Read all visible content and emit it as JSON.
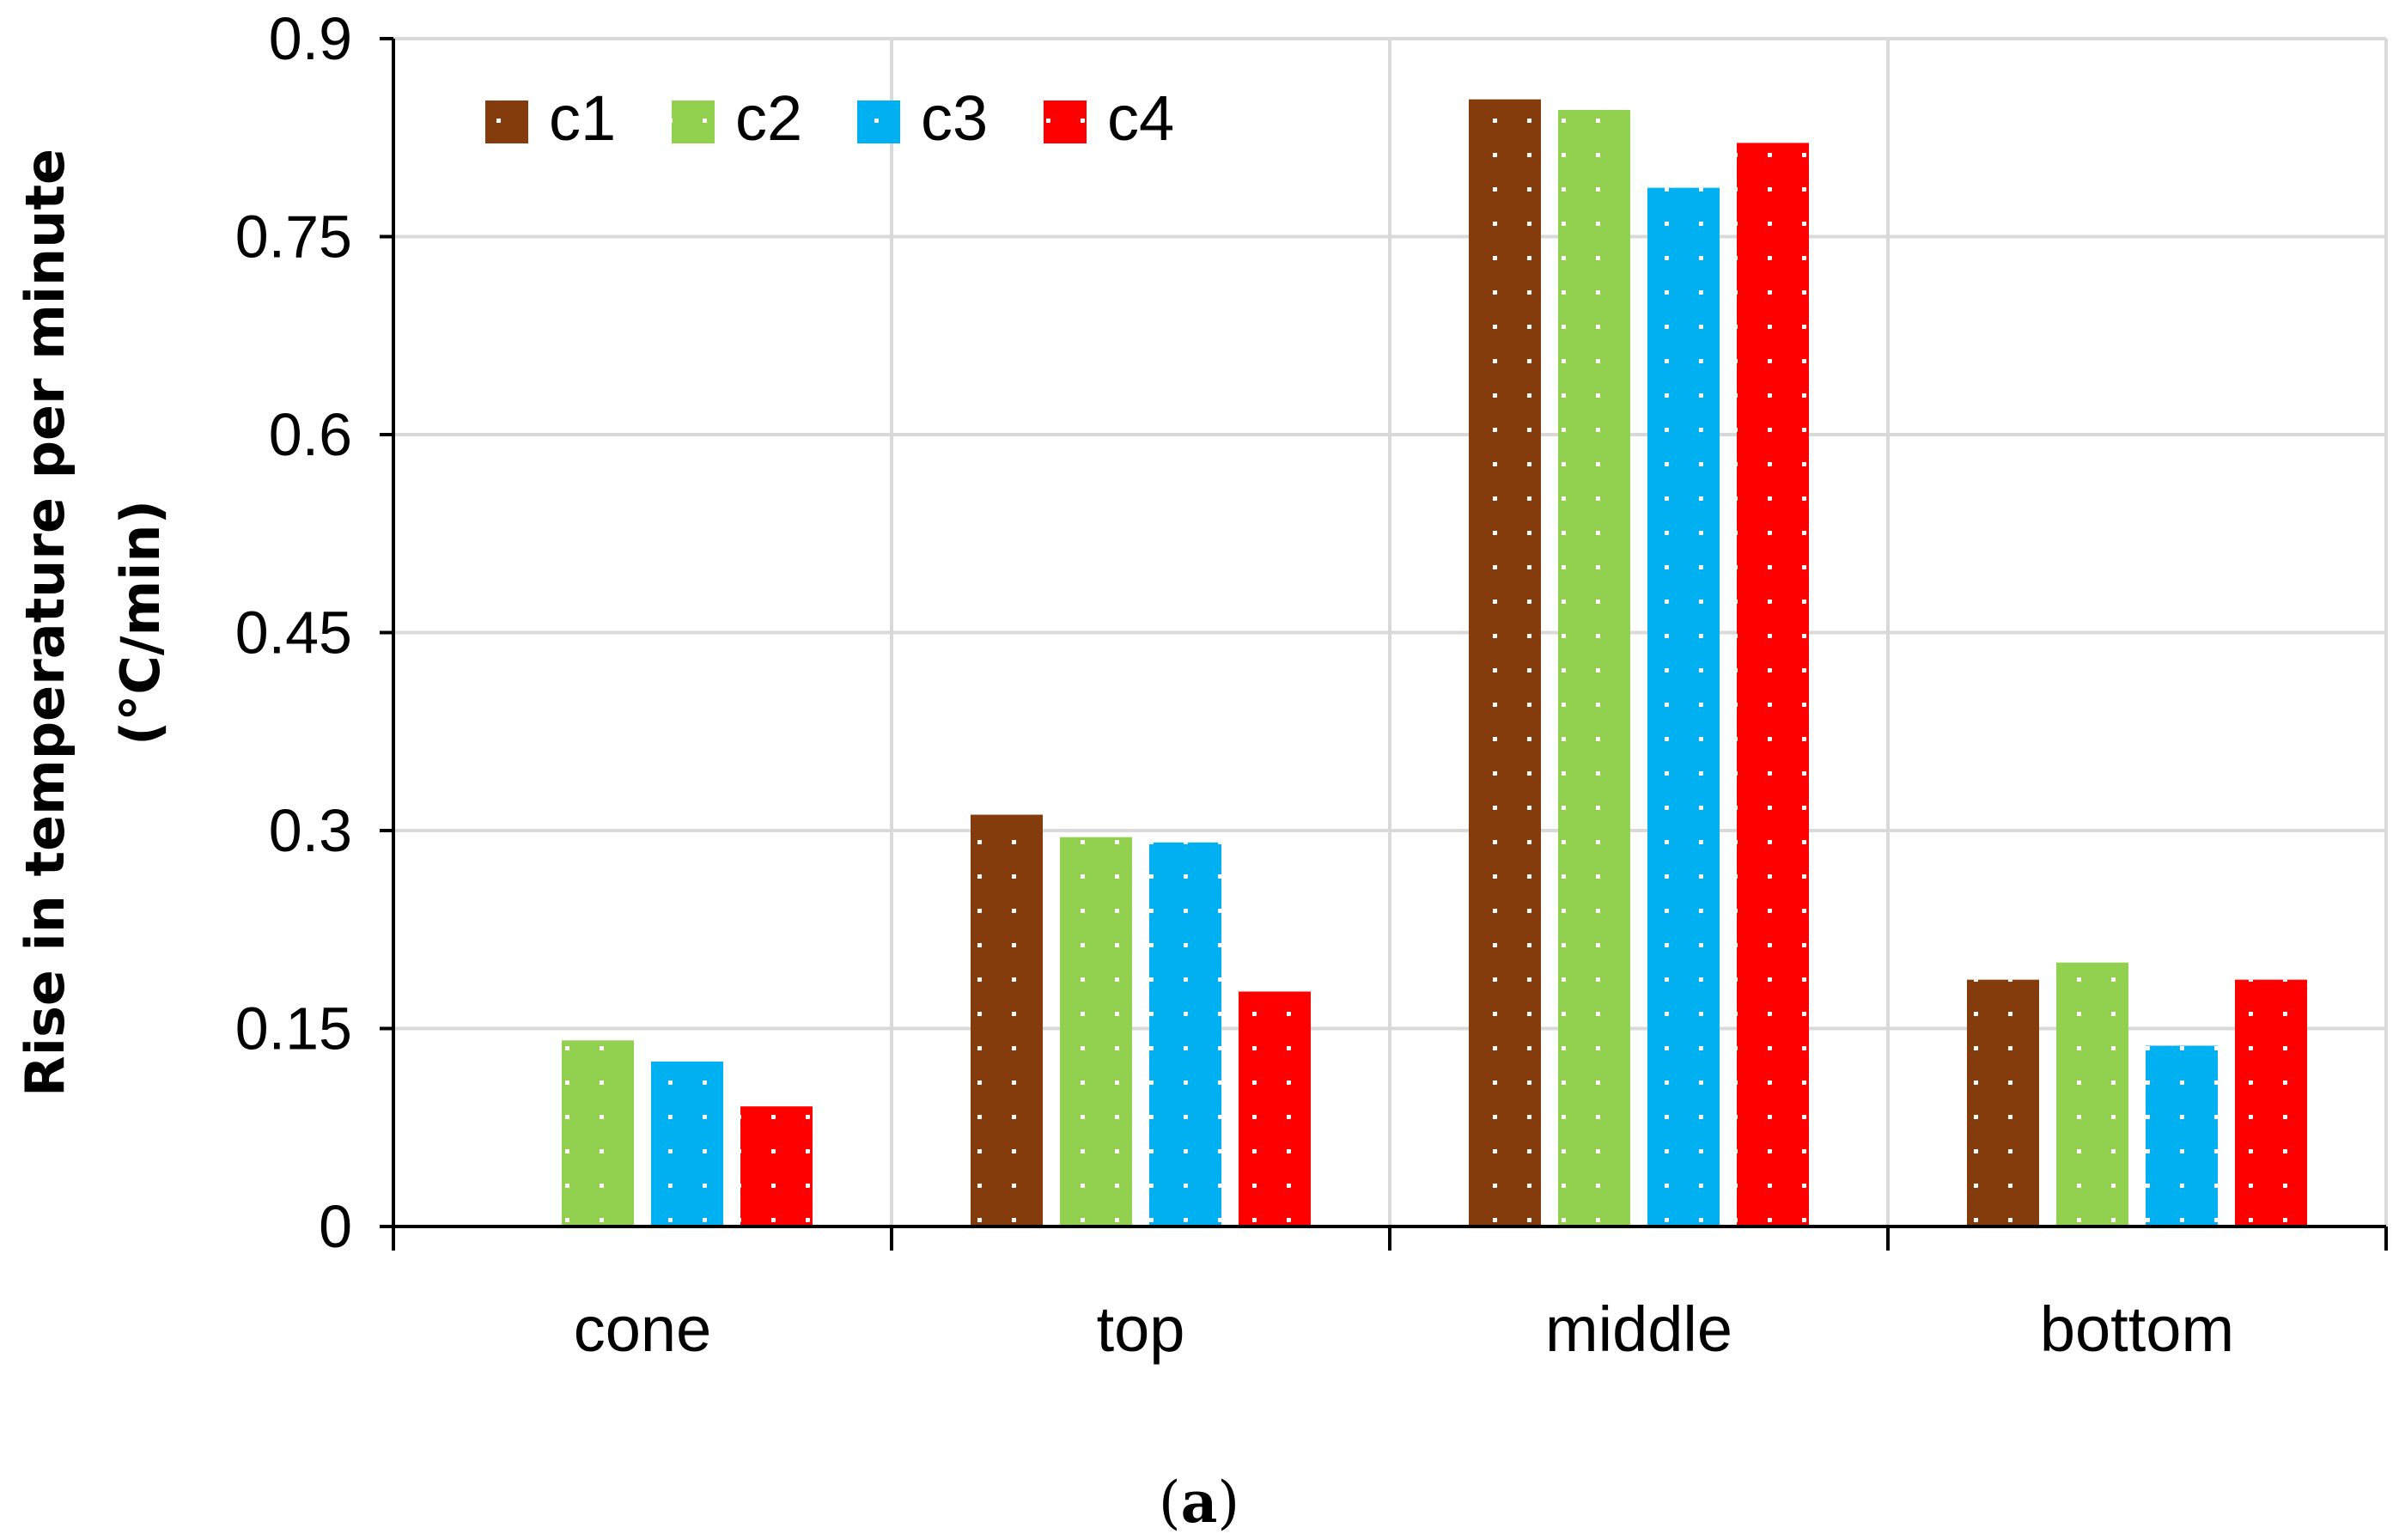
{
  "chart_data": {
    "type": "bar",
    "title": "",
    "xlabel": "",
    "ylabel_lines": [
      "Rise in temperature per minute",
      "(°C/min)"
    ],
    "categories": [
      "cone",
      "top",
      "middle",
      "bottom"
    ],
    "series": [
      {
        "name": "c1",
        "color": "#843C0C",
        "values": [
          0,
          0.312,
          0.854,
          0.187
        ]
      },
      {
        "name": "c2",
        "color": "#92D050",
        "values": [
          0.141,
          0.295,
          0.846,
          0.2
        ]
      },
      {
        "name": "c3",
        "color": "#00B0F0",
        "values": [
          0.125,
          0.291,
          0.787,
          0.137
        ]
      },
      {
        "name": "c4",
        "color": "#FF0000",
        "values": [
          0.091,
          0.178,
          0.821,
          0.187
        ]
      }
    ],
    "ylim": [
      0,
      0.9
    ],
    "yticks": [
      "0",
      "0.15",
      "0.3",
      "0.45",
      "0.6",
      "0.75",
      "0.9"
    ],
    "ytick_values": [
      0,
      0.15,
      0.3,
      0.45,
      0.6,
      0.75,
      0.9
    ],
    "grid": true,
    "legend_position": "top-left",
    "panel_label": {
      "open": "(",
      "letter": "a",
      "close": ")"
    }
  }
}
